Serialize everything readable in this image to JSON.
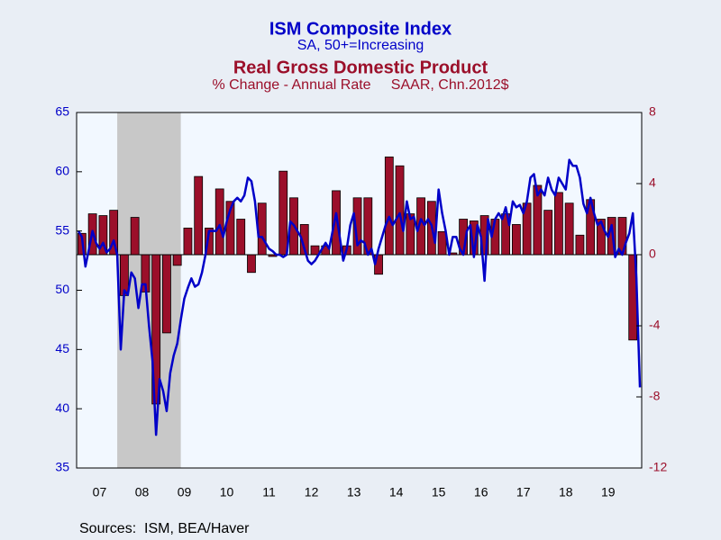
{
  "chart_data": {
    "type": "combo",
    "source": "Sources:  ISM, BEA/Haver",
    "categories": [
      null,
      null,
      null,
      null,
      null,
      null,
      "07",
      null,
      null,
      null,
      null,
      null,
      null,
      null,
      null,
      null,
      null,
      null,
      "08",
      null,
      null,
      null,
      null,
      null,
      null,
      null,
      null,
      null,
      null,
      null,
      "09",
      null,
      null,
      null,
      null,
      null,
      null,
      null,
      null,
      null,
      null,
      null,
      "10",
      null,
      null,
      null,
      null,
      null,
      null,
      null,
      null,
      null,
      null,
      null,
      "11",
      null,
      null,
      null,
      null,
      null,
      null,
      null,
      null,
      null,
      null,
      null,
      "12",
      null,
      null,
      null,
      null,
      null,
      null,
      null,
      null,
      null,
      null,
      null,
      "13",
      null,
      null,
      null,
      null,
      null,
      null,
      null,
      null,
      null,
      null,
      null,
      "14",
      null,
      null,
      null,
      null,
      null,
      null,
      null,
      null,
      null,
      null,
      null,
      "15",
      null,
      null,
      null,
      null,
      null,
      null,
      null,
      null,
      null,
      null,
      null,
      "16",
      null,
      null,
      null,
      null,
      null,
      null,
      null,
      null,
      null,
      null,
      null,
      "17",
      null,
      null,
      null,
      null,
      null,
      null,
      null,
      null,
      null,
      null,
      null,
      "18",
      null,
      null,
      null,
      null,
      null,
      null,
      null,
      null,
      null,
      null,
      null,
      "19",
      null,
      null,
      null,
      null,
      null,
      null,
      null,
      null,
      null
    ],
    "shaded": [
      11,
      29
    ],
    "ylim": [
      35,
      65
    ],
    "yticks": [
      35,
      40,
      45,
      50,
      55,
      60,
      65
    ],
    "y2lim": [
      -12,
      8
    ],
    "y2ticks": [
      -12,
      -8,
      -4,
      0,
      4,
      8
    ],
    "series": [
      {
        "name": "ISM Composite Index",
        "subtitle": "SA, 50+=Increasing",
        "type": "line",
        "color": "#0000c8",
        "values": [
          55,
          54.5,
          52,
          53.5,
          55,
          54,
          53.5,
          54,
          53.2,
          53.5,
          54.2,
          53,
          45,
          50,
          49.6,
          51.5,
          51,
          48.5,
          50.5,
          50.5,
          47,
          44,
          37.8,
          42.5,
          41.5,
          39.8,
          43,
          44.5,
          45.5,
          47.5,
          49.3,
          50.2,
          51,
          50.3,
          50.5,
          51.5,
          53,
          55,
          55,
          55,
          55.5,
          54.5,
          55.8,
          56.8,
          57.5,
          57.8,
          57.5,
          58,
          59.5,
          59.2,
          57.5,
          54.5,
          54.5,
          54,
          53.5,
          53.3,
          53,
          53,
          52.8,
          53,
          55.8,
          55.5,
          55,
          54.5,
          53.5,
          52.5,
          52.2,
          52.5,
          53,
          53.5,
          54,
          53.5,
          55,
          56.5,
          54.5,
          52.5,
          53.5,
          55.5,
          56.5,
          53.8,
          54.2,
          54,
          53,
          53.5,
          52.2,
          53.5,
          54.5,
          55.5,
          56.2,
          55.5,
          56,
          56.5,
          55,
          57.5,
          56,
          56.2,
          55,
          56,
          55.5,
          56,
          55.5,
          54,
          58.5,
          56.5,
          55,
          53,
          54.5,
          54.5,
          53.5,
          53,
          55,
          55.5,
          52.8,
          55.5,
          54.5,
          50.8,
          56,
          54.5,
          56,
          56.5,
          56,
          57,
          55.5,
          57.5,
          57,
          57.2,
          56.5,
          57.5,
          59.5,
          59.8,
          58,
          58.5,
          58,
          59.5,
          58.5,
          58,
          59.5,
          59,
          58.5,
          61,
          60.5,
          60.5,
          59.5,
          57.3,
          56.5,
          57.8,
          56.5,
          55.5,
          55.8,
          55,
          54.5,
          55.5,
          52.8,
          53.5,
          53,
          54,
          54.8,
          56.5,
          51,
          41.8
        ]
      },
      {
        "name": "Real Gross Domestic Product",
        "subtitle": "% Change - Annual Rate     SAAR, Chn.2012$",
        "type": "bar",
        "axis": "y2",
        "color": "#9b0f2a",
        "values": [
          null,
          1.2,
          null,
          null,
          2.3,
          null,
          null,
          2.2,
          null,
          null,
          2.5,
          null,
          null,
          -2.3,
          null,
          null,
          2.1,
          null,
          null,
          -2.1,
          null,
          null,
          -8.4,
          null,
          null,
          -4.4,
          null,
          null,
          -0.6,
          null,
          null,
          1.5,
          null,
          null,
          4.4,
          null,
          null,
          1.5,
          null,
          null,
          3.7,
          null,
          null,
          3.0,
          null,
          null,
          2.0,
          null,
          null,
          -1.0,
          null,
          null,
          2.9,
          null,
          null,
          -0.1,
          null,
          null,
          4.7,
          null,
          null,
          3.2,
          null,
          null,
          1.7,
          null,
          null,
          0.5,
          null,
          null,
          0.5,
          null,
          null,
          3.6,
          null,
          null,
          0.5,
          null,
          null,
          3.2,
          null,
          null,
          3.2,
          null,
          null,
          -1.1,
          null,
          null,
          5.5,
          null,
          null,
          5.0,
          null,
          null,
          2.3,
          null,
          null,
          3.2,
          null,
          null,
          3.0,
          null,
          null,
          1.3,
          null,
          null,
          0.1,
          null,
          null,
          2.0,
          null,
          null,
          1.9,
          null,
          null,
          2.2,
          null,
          null,
          2.0,
          null,
          null,
          2.3,
          null,
          null,
          1.7,
          null,
          null,
          2.9,
          null,
          null,
          3.9,
          null,
          null,
          2.5,
          null,
          null,
          3.5,
          null,
          null,
          2.9,
          null,
          null,
          1.1,
          null,
          null,
          3.1,
          null,
          null,
          2.0,
          null,
          null,
          2.1,
          null,
          null,
          2.1,
          null,
          null,
          -4.8,
          null,
          null
        ]
      }
    ]
  }
}
